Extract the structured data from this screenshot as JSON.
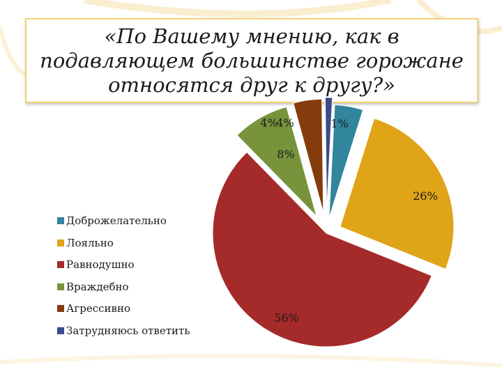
{
  "slide": {
    "title": "«По Вашему мнению, как в подавляющем большинстве горожане относятся друг к другу?»"
  },
  "chart_data": {
    "type": "pie",
    "title": "«По Вашему мнению, как в подавляющем большинстве горожане относятся друг к другу?»",
    "legend_position": "left",
    "series": [
      {
        "name": "Доброжелательно",
        "value": 4,
        "label": "4%",
        "color": "#31859c"
      },
      {
        "name": "Лояльно",
        "value": 26,
        "label": "26%",
        "color": "#e0a418"
      },
      {
        "name": "Равнодушно",
        "value": 56,
        "label": "56%",
        "color": "#a52a2a"
      },
      {
        "name": "Враждебно",
        "value": 8,
        "label": "8%",
        "color": "#77933c"
      },
      {
        "name": "Агрессивно",
        "value": 4,
        "label": "4%",
        "color": "#843c0c"
      },
      {
        "name": "Затрудняюсь ответить",
        "value": 1,
        "label": "1%",
        "color": "#3b4a8a"
      }
    ]
  }
}
